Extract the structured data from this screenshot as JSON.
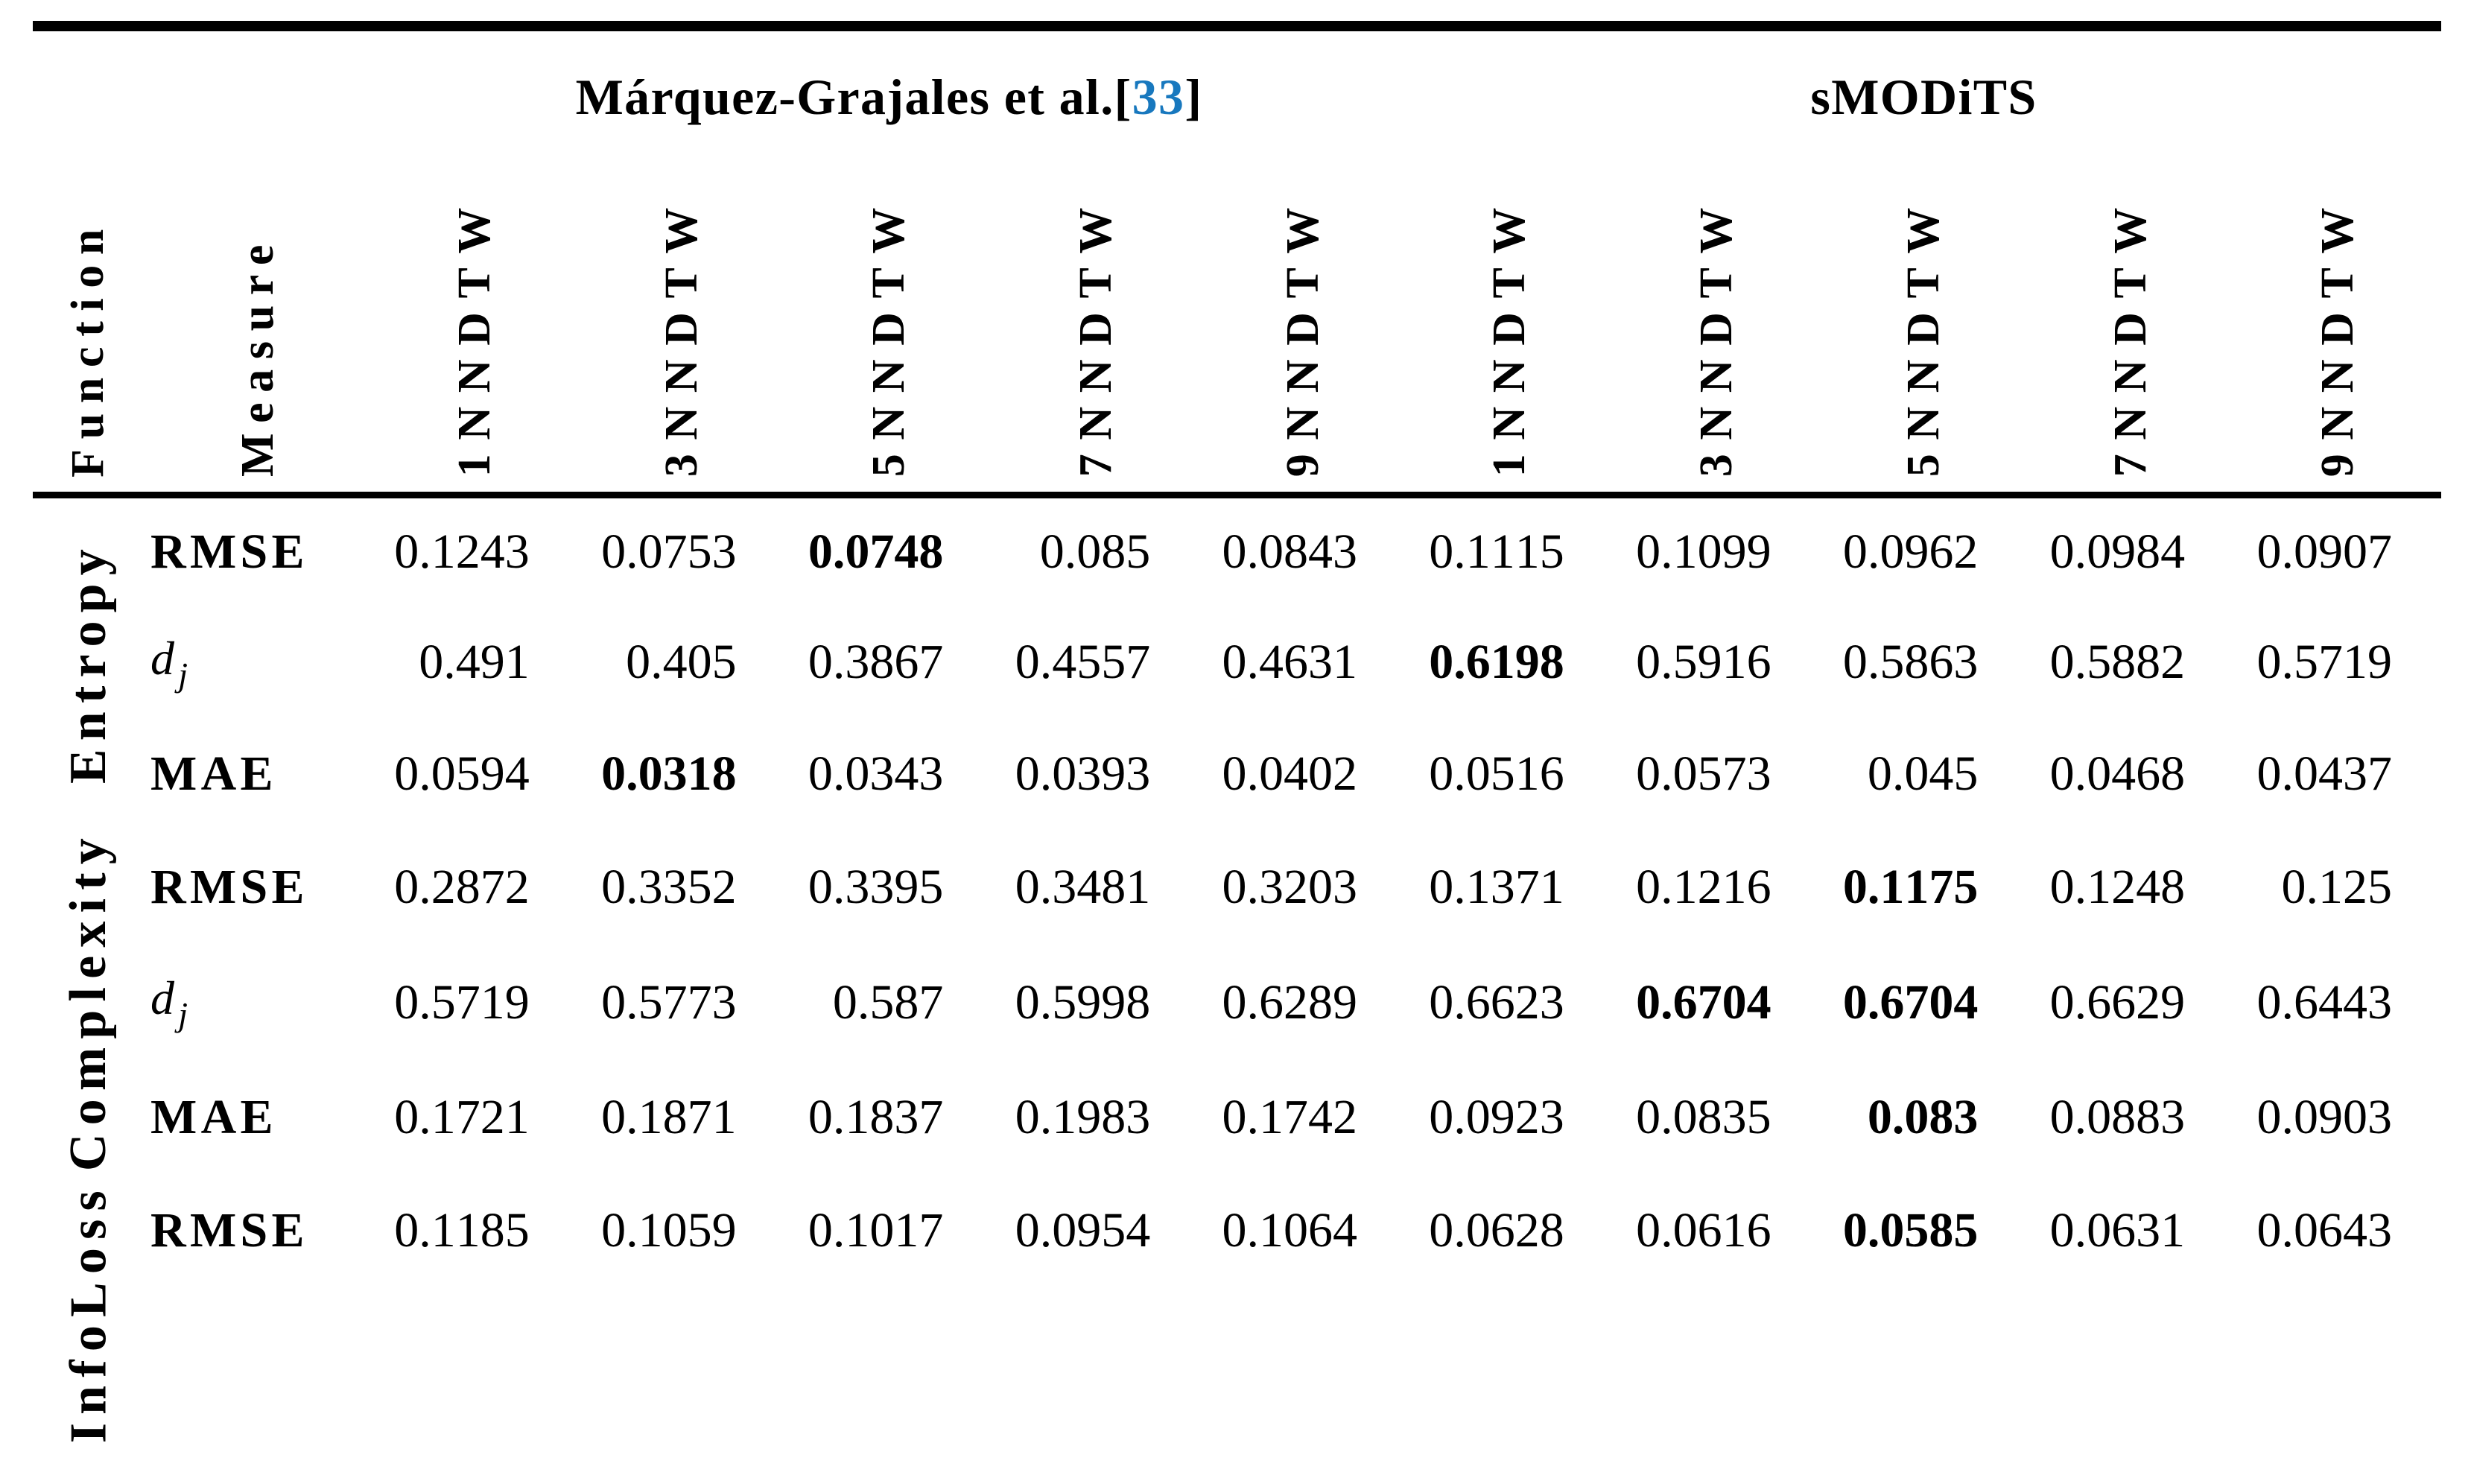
{
  "table": {
    "rule_color": "#000000",
    "citation_color": "#1878be",
    "corner": {
      "function": "Function",
      "measure": "Measure"
    },
    "group_headers": {
      "marquez": {
        "label": "Márquez-Grajales et al.",
        "bracket_open": "[",
        "citation": "33",
        "bracket_close": "]"
      },
      "smodits": {
        "label": "sMODiTS"
      }
    },
    "column_headers": [
      "1NNDTW",
      "3NNDTW",
      "5NNDTW",
      "7NNDTW",
      "9NNDTW",
      "1NNDTW",
      "3NNDTW",
      "5NNDTW",
      "7NNDTW",
      "9NNDTW"
    ],
    "groups": [
      {
        "function": "Entropy",
        "rows": [
          {
            "measure": "RMSE",
            "bold_columns": [
              2
            ],
            "values": [
              "0.1243",
              "0.0753",
              "0.0748",
              "0.085",
              "0.0843",
              "0.1115",
              "0.1099",
              "0.0962",
              "0.0984",
              "0.0907"
            ]
          },
          {
            "measure": {
              "base": "d",
              "sub": "j"
            },
            "bold_columns": [
              5
            ],
            "values": [
              "0.491",
              "0.405",
              "0.3867",
              "0.4557",
              "0.4631",
              "0.6198",
              "0.5916",
              "0.5863",
              "0.5882",
              "0.5719"
            ]
          },
          {
            "measure": "MAE",
            "bold_columns": [
              1
            ],
            "values": [
              "0.0594",
              "0.0318",
              "0.0343",
              "0.0393",
              "0.0402",
              "0.0516",
              "0.0573",
              "0.045",
              "0.0468",
              "0.0437"
            ]
          }
        ]
      },
      {
        "function": "Complexity",
        "rows": [
          {
            "measure": "RMSE",
            "bold_columns": [
              7
            ],
            "values": [
              "0.2872",
              "0.3352",
              "0.3395",
              "0.3481",
              "0.3203",
              "0.1371",
              "0.1216",
              "0.1175",
              "0.1248",
              "0.125"
            ]
          },
          {
            "measure": {
              "base": "d",
              "sub": "j"
            },
            "bold_columns": [
              6,
              7
            ],
            "values": [
              "0.5719",
              "0.5773",
              "0.587",
              "0.5998",
              "0.6289",
              "0.6623",
              "0.6704",
              "0.6704",
              "0.6629",
              "0.6443"
            ]
          },
          {
            "measure": "MAE",
            "bold_columns": [
              7
            ],
            "values": [
              "0.1721",
              "0.1871",
              "0.1837",
              "0.1983",
              "0.1742",
              "0.0923",
              "0.0835",
              "0.083",
              "0.0883",
              "0.0903"
            ]
          }
        ]
      },
      {
        "function": "InfoLoss",
        "rows": [
          {
            "measure": "RMSE",
            "bold_columns": [
              7
            ],
            "values": [
              "0.1185",
              "0.1059",
              "0.1017",
              "0.0954",
              "0.1064",
              "0.0628",
              "0.0616",
              "0.0585",
              "0.0631",
              "0.0643"
            ]
          }
        ]
      }
    ]
  }
}
